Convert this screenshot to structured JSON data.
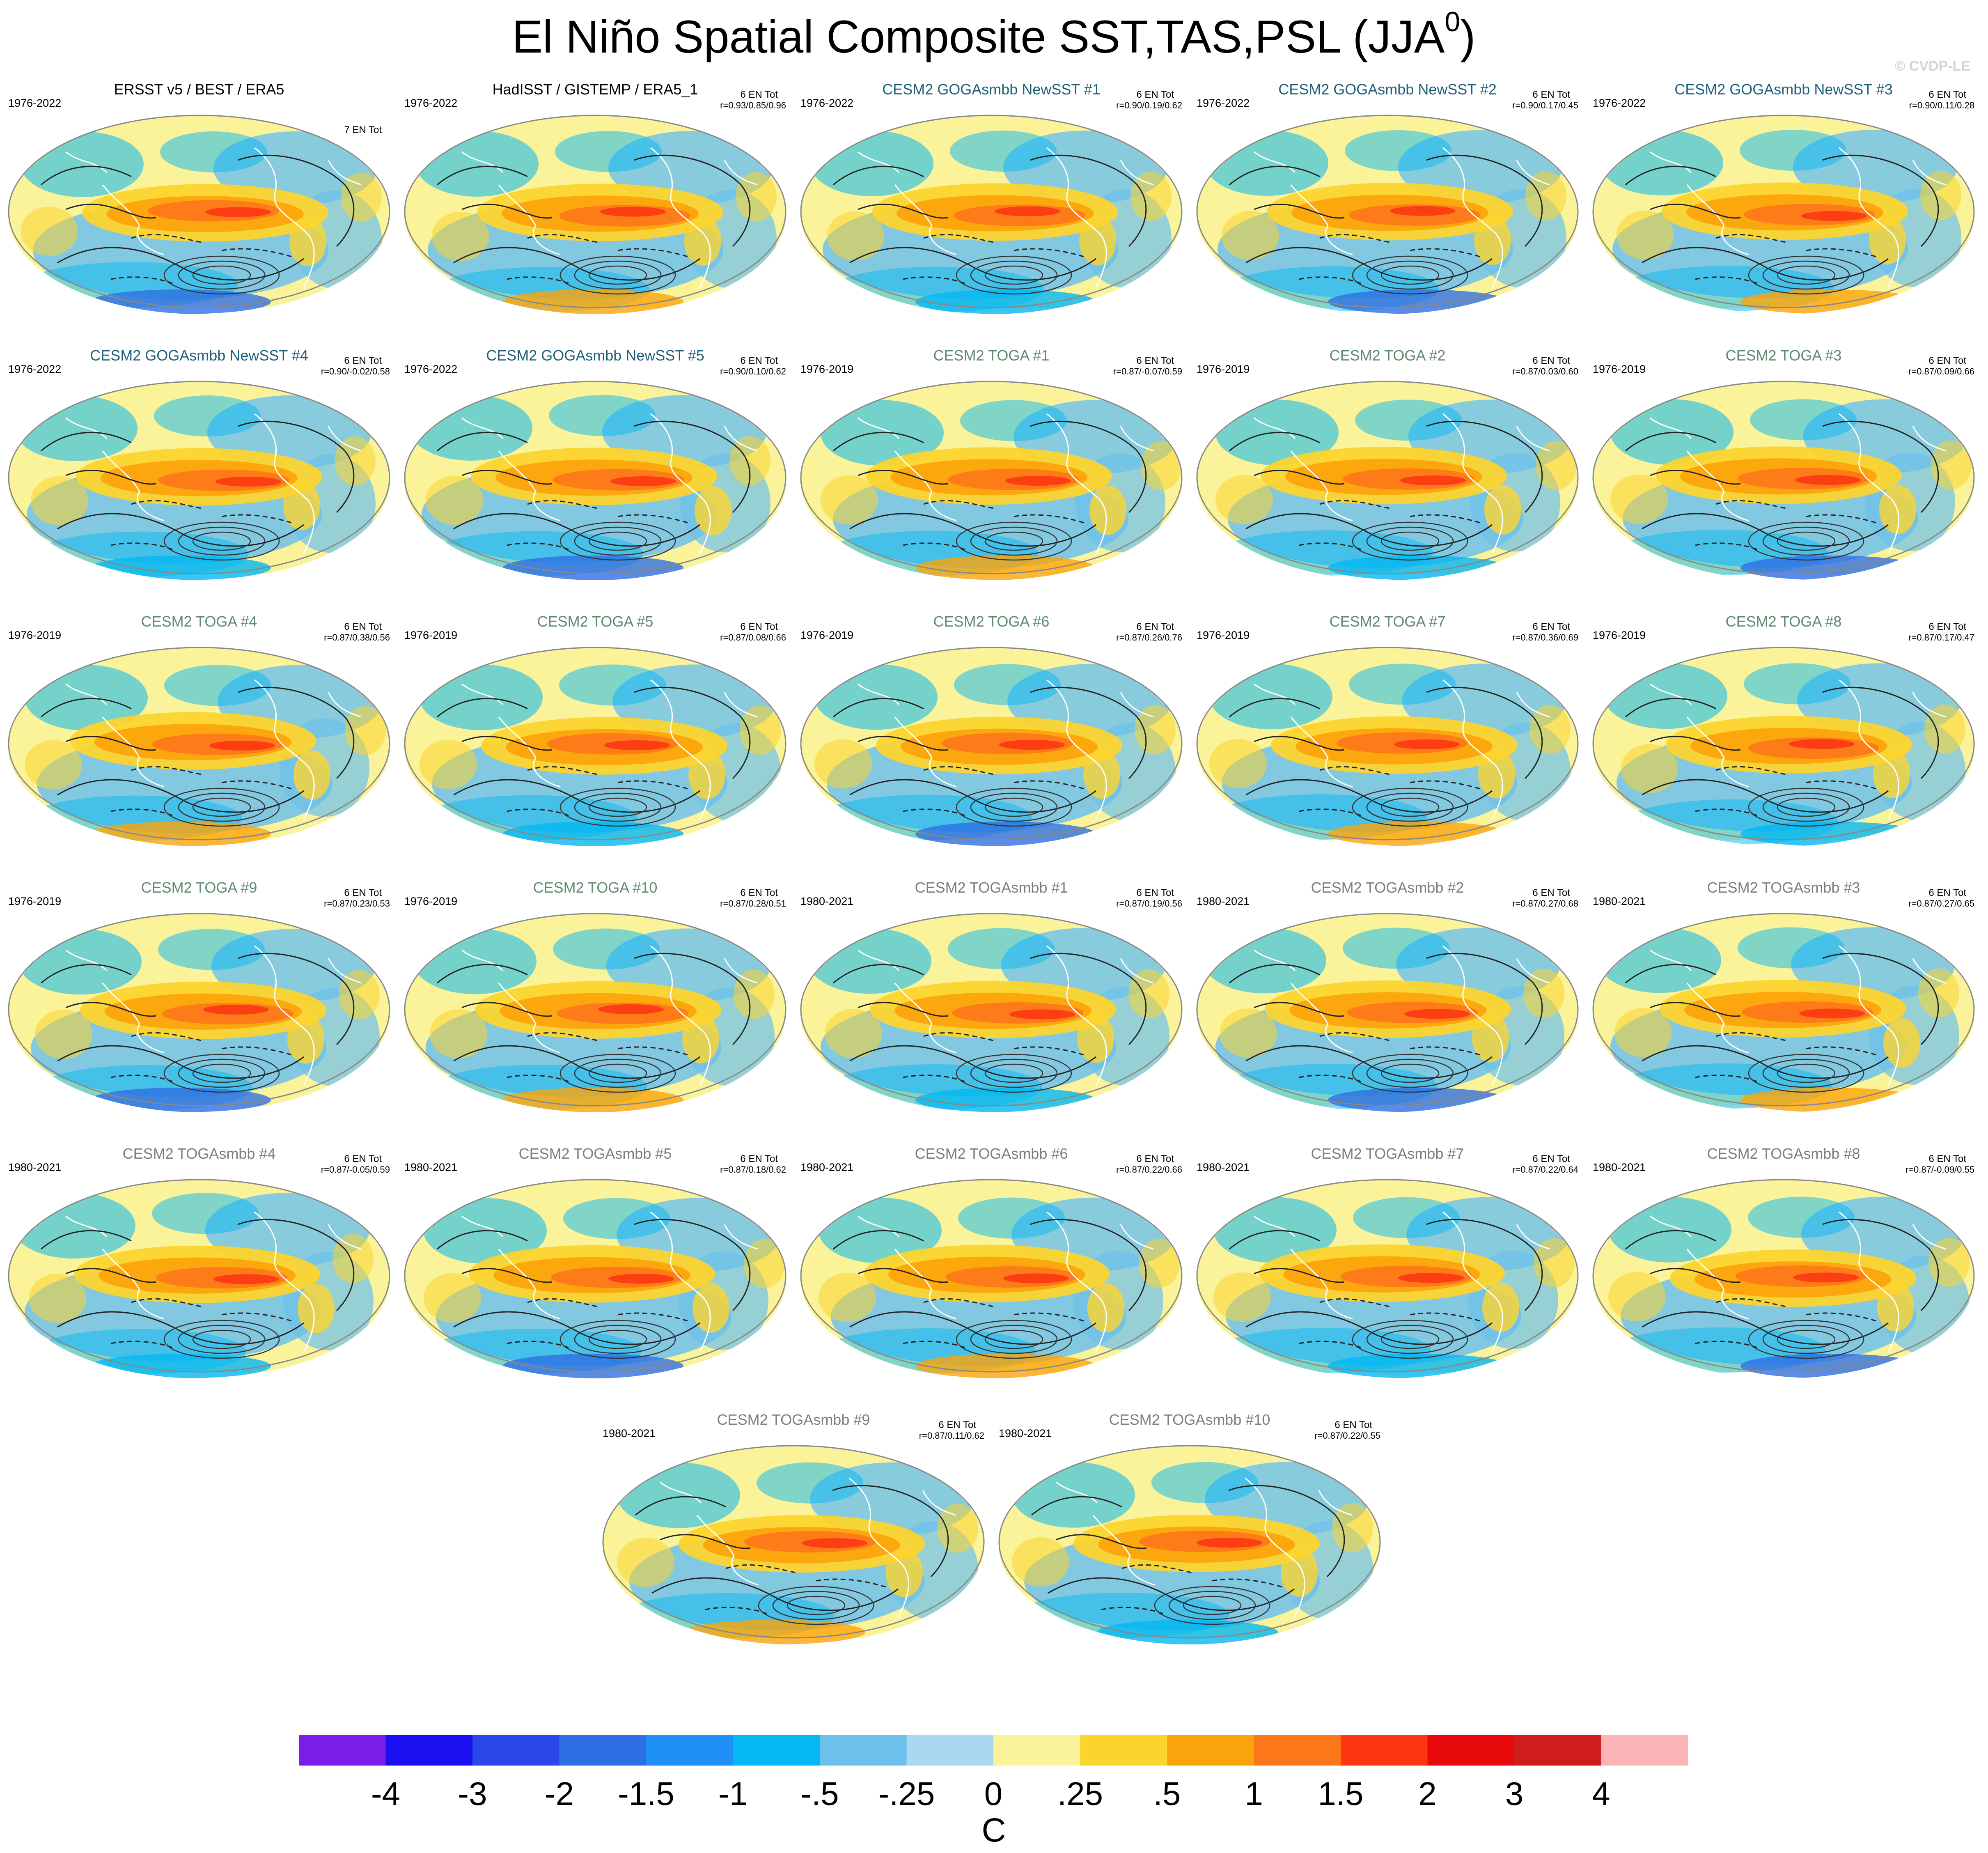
{
  "figure": {
    "title": "El Niño Spatial Composite SST,TAS,PSL (JJA",
    "title_sup": "0",
    "title_close": ")",
    "watermark": "© CVDP-LE"
  },
  "chart_data": {
    "type": "heatmap",
    "title": "El Niño Spatial Composite SST,TAS,PSL (JJA0)",
    "projection": "robinson",
    "overlay": "PSL contours",
    "grid": false,
    "units": "C",
    "colorbar": {
      "labels": [
        "-4",
        "-3",
        "-2",
        "-1.5",
        "-1",
        "-.5",
        "-.25",
        "0",
        ".25",
        ".5",
        "1",
        "1.5",
        "2",
        "3",
        "4"
      ],
      "colors": [
        "#7a1de6",
        "#1a0ff0",
        "#2a48e8",
        "#2f6fe4",
        "#1e90f7",
        "#05b7f2",
        "#6cc0ec",
        "#a9d8f2",
        "#fbf39a",
        "#fcd42e",
        "#fca40b",
        "#fd781a",
        "#fd3612",
        "#e80a0a",
        "#cf1c1c",
        "#fcb4b8"
      ]
    },
    "panels": [
      {
        "title": "ERSST v5 / BEST / ERA5",
        "period": "1976-2022",
        "events": "7 EN Tot",
        "stats": "",
        "style": "obs"
      },
      {
        "title": "HadISST / GISTEMP / ERA5_1",
        "period": "1976-2022",
        "events": "6 EN Tot",
        "stats": "r=0.93/0.85/0.96",
        "style": "obs"
      },
      {
        "title": "CESM2 GOGAsmbb NewSST #1",
        "period": "1976-2022",
        "events": "6 EN Tot",
        "stats": "r=0.90/0.19/0.62",
        "style": "goga"
      },
      {
        "title": "CESM2 GOGAsmbb NewSST #2",
        "period": "1976-2022",
        "events": "6 EN Tot",
        "stats": "r=0.90/0.17/0.45",
        "style": "goga"
      },
      {
        "title": "CESM2 GOGAsmbb NewSST #3",
        "period": "1976-2022",
        "events": "6 EN Tot",
        "stats": "r=0.90/0.11/0.28",
        "style": "goga"
      },
      {
        "title": "CESM2 GOGAsmbb NewSST #4",
        "period": "1976-2022",
        "events": "6 EN Tot",
        "stats": "r=0.90/-0.02/0.58",
        "style": "goga"
      },
      {
        "title": "CESM2 GOGAsmbb NewSST #5",
        "period": "1976-2022",
        "events": "6 EN Tot",
        "stats": "r=0.90/0.10/0.62",
        "style": "goga"
      },
      {
        "title": "CESM2 TOGA #1",
        "period": "1976-2019",
        "events": "6 EN Tot",
        "stats": "r=0.87/-0.07/0.59",
        "style": "toga"
      },
      {
        "title": "CESM2 TOGA #2",
        "period": "1976-2019",
        "events": "6 EN Tot",
        "stats": "r=0.87/0.03/0.60",
        "style": "toga"
      },
      {
        "title": "CESM2 TOGA #3",
        "period": "1976-2019",
        "events": "6 EN Tot",
        "stats": "r=0.87/0.09/0.66",
        "style": "toga"
      },
      {
        "title": "CESM2 TOGA #4",
        "period": "1976-2019",
        "events": "6 EN Tot",
        "stats": "r=0.87/0.38/0.56",
        "style": "toga"
      },
      {
        "title": "CESM2 TOGA #5",
        "period": "1976-2019",
        "events": "6 EN Tot",
        "stats": "r=0.87/0.08/0.66",
        "style": "toga"
      },
      {
        "title": "CESM2 TOGA #6",
        "period": "1976-2019",
        "events": "6 EN Tot",
        "stats": "r=0.87/0.26/0.76",
        "style": "toga"
      },
      {
        "title": "CESM2 TOGA #7",
        "period": "1976-2019",
        "events": "6 EN Tot",
        "stats": "r=0.87/0.36/0.69",
        "style": "toga"
      },
      {
        "title": "CESM2 TOGA #8",
        "period": "1976-2019",
        "events": "6 EN Tot",
        "stats": "r=0.87/0.17/0.47",
        "style": "toga"
      },
      {
        "title": "CESM2 TOGA #9",
        "period": "1976-2019",
        "events": "6 EN Tot",
        "stats": "r=0.87/0.23/0.53",
        "style": "toga"
      },
      {
        "title": "CESM2 TOGA #10",
        "period": "1976-2019",
        "events": "6 EN Tot",
        "stats": "r=0.87/0.28/0.51",
        "style": "toga"
      },
      {
        "title": "CESM2 TOGAsmbb #1",
        "period": "1980-2021",
        "events": "6 EN Tot",
        "stats": "r=0.87/0.19/0.56",
        "style": "togasmbb"
      },
      {
        "title": "CESM2 TOGAsmbb #2",
        "period": "1980-2021",
        "events": "6 EN Tot",
        "stats": "r=0.87/0.27/0.68",
        "style": "togasmbb"
      },
      {
        "title": "CESM2 TOGAsmbb #3",
        "period": "1980-2021",
        "events": "6 EN Tot",
        "stats": "r=0.87/0.27/0.65",
        "style": "togasmbb"
      },
      {
        "title": "CESM2 TOGAsmbb #4",
        "period": "1980-2021",
        "events": "6 EN Tot",
        "stats": "r=0.87/-0.05/0.59",
        "style": "togasmbb"
      },
      {
        "title": "CESM2 TOGAsmbb #5",
        "period": "1980-2021",
        "events": "6 EN Tot",
        "stats": "r=0.87/0.18/0.62",
        "style": "togasmbb"
      },
      {
        "title": "CESM2 TOGAsmbb #6",
        "period": "1980-2021",
        "events": "6 EN Tot",
        "stats": "r=0.87/0.22/0.66",
        "style": "togasmbb"
      },
      {
        "title": "CESM2 TOGAsmbb #7",
        "period": "1980-2021",
        "events": "6 EN Tot",
        "stats": "r=0.87/0.22/0.64",
        "style": "togasmbb"
      },
      {
        "title": "CESM2 TOGAsmbb #8",
        "period": "1980-2021",
        "events": "6 EN Tot",
        "stats": "r=0.87/-0.09/0.55",
        "style": "togasmbb"
      },
      {
        "title": "CESM2 TOGAsmbb #9",
        "period": "1980-2021",
        "events": "6 EN Tot",
        "stats": "r=0.87/0.11/0.62",
        "style": "togasmbb"
      },
      {
        "title": "CESM2 TOGAsmbb #10",
        "period": "1980-2021",
        "events": "6 EN Tot",
        "stats": "r=0.87/0.22/0.55",
        "style": "togasmbb"
      }
    ],
    "title_colors": {
      "obs": "#000000",
      "goga": "#1f5f7a",
      "toga": "#5e8a6e",
      "togasmbb": "#7d7d7d"
    }
  }
}
